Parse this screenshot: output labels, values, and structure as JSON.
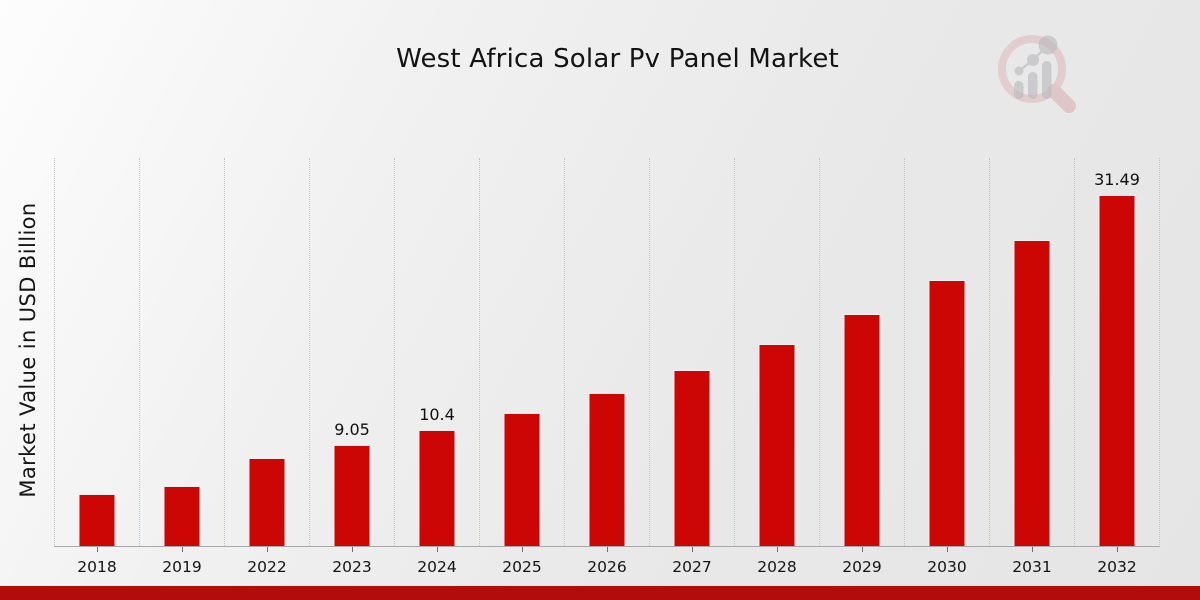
{
  "page": {
    "title": "West Africa Solar Pv Panel Market"
  },
  "branding": {
    "logo_icon": "magnifier-bar-chart-logo",
    "logo_ring_color": "#dcb4b4",
    "logo_bars_color": "#b9b9bd",
    "footer_bar_color": "#b20c0c"
  },
  "chart_data": {
    "type": "bar",
    "title": "West Africa Solar Pv Panel Market",
    "xlabel": "",
    "ylabel": "Market Value in USD Billion",
    "categories": [
      "2018",
      "2019",
      "2022",
      "2023",
      "2024",
      "2025",
      "2026",
      "2027",
      "2028",
      "2029",
      "2030",
      "2031",
      "2032"
    ],
    "values": [
      4.65,
      5.35,
      7.9,
      9.05,
      10.4,
      11.94,
      13.72,
      15.76,
      18.1,
      20.79,
      23.88,
      27.42,
      31.49
    ],
    "data_labels": [
      "",
      "",
      "",
      "9.05",
      "10.4",
      "",
      "",
      "",
      "",
      "",
      "",
      "",
      "31.49"
    ],
    "unit": "USD Billion",
    "ylim": [
      0,
      34.8
    ],
    "y_axis_ticks_visible": false,
    "grid": "vertical-dotted",
    "legend": "none",
    "bar_color": "#cc0505"
  }
}
